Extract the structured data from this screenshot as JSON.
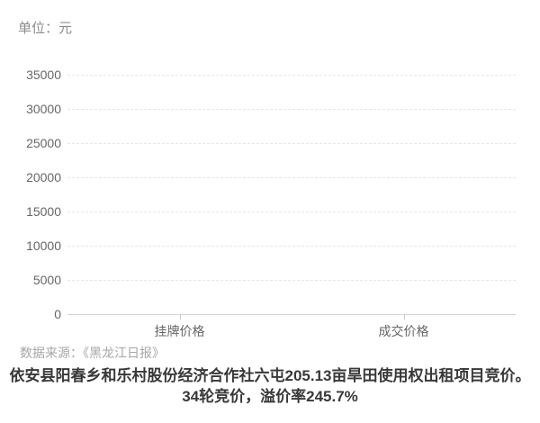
{
  "header": {
    "unit_label": "单位：元"
  },
  "footer": {
    "source": "数据来源：《黑龙江日报》",
    "caption_line1": "依安县阳春乡和乐村股份经济合作社六屯205.13亩旱田使用权出租项目竞价。",
    "caption_line2": "34轮竞价，溢价率245.7%"
  },
  "chart_data": {
    "type": "bar",
    "categories": [
      "挂牌价格",
      "成交价格"
    ],
    "values": [
      0,
      0
    ],
    "bars_rendered": false,
    "title": "",
    "xlabel": "",
    "ylabel": "单位：元",
    "ylim": [
      0,
      35000
    ],
    "yticks": [
      0,
      5000,
      10000,
      15000,
      20000,
      25000,
      30000,
      35000
    ],
    "ytick_step": 5000,
    "grid": "horizontal-dashed",
    "legend": "none",
    "colors": {
      "background": "#ffffff",
      "axis": "#d4d4d4",
      "gridline": "#e6e6e6",
      "tick": "#c8c8c8",
      "axis_label": "#666666",
      "unit_text": "#8c8c8c",
      "source_text": "#a6a6a6",
      "caption_text": "#383838"
    }
  }
}
